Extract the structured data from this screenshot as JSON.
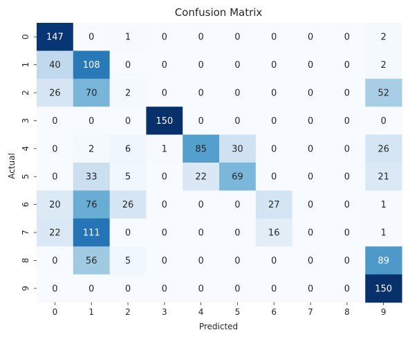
{
  "chart_data": {
    "type": "heatmap",
    "title": "Confusion Matrix",
    "xlabel": "Predicted",
    "ylabel": "Actual",
    "x_categories": [
      "0",
      "1",
      "2",
      "3",
      "4",
      "5",
      "6",
      "7",
      "8",
      "9"
    ],
    "y_categories": [
      "0",
      "1",
      "2",
      "3",
      "4",
      "5",
      "6",
      "7",
      "8",
      "9"
    ],
    "values": [
      [
        147,
        0,
        1,
        0,
        0,
        0,
        0,
        0,
        0,
        2
      ],
      [
        40,
        108,
        0,
        0,
        0,
        0,
        0,
        0,
        0,
        2
      ],
      [
        26,
        70,
        2,
        0,
        0,
        0,
        0,
        0,
        0,
        52
      ],
      [
        0,
        0,
        0,
        150,
        0,
        0,
        0,
        0,
        0,
        0
      ],
      [
        0,
        2,
        6,
        1,
        85,
        30,
        0,
        0,
        0,
        26
      ],
      [
        0,
        33,
        5,
        0,
        22,
        69,
        0,
        0,
        0,
        21
      ],
      [
        20,
        76,
        26,
        0,
        0,
        0,
        27,
        0,
        0,
        1
      ],
      [
        22,
        111,
        0,
        0,
        0,
        0,
        16,
        0,
        0,
        1
      ],
      [
        0,
        56,
        5,
        0,
        0,
        0,
        0,
        0,
        0,
        89
      ],
      [
        0,
        0,
        0,
        0,
        0,
        0,
        0,
        0,
        0,
        150
      ]
    ],
    "value_range": [
      0,
      150
    ],
    "colormap": "Blues",
    "annotations": true,
    "colorbar": false,
    "grid": false
  }
}
